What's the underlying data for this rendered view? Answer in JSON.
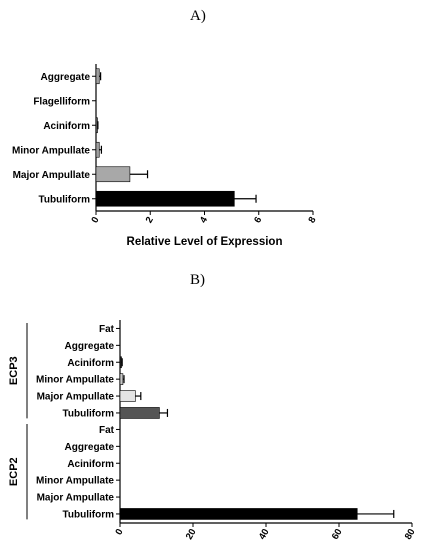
{
  "panels": {
    "a_label": "A)",
    "b_label": "B)"
  },
  "chart_data": [
    {
      "type": "bar",
      "orientation": "horizontal",
      "panel": "A)",
      "categories": [
        "Aggregate",
        "Flagelliform",
        "Aciniform",
        "Minor Ampullate",
        "Major Ampullate",
        "Tubuliform"
      ],
      "values": [
        0.12,
        0.0,
        0.05,
        0.12,
        1.25,
        5.1
      ],
      "errors": [
        0.05,
        0.0,
        0.02,
        0.08,
        0.65,
        0.8
      ],
      "colors": [
        "#a0a0a0",
        "#a0a0a0",
        "#707070",
        "#a0a0a0",
        "#a8a8a8",
        "#000000"
      ],
      "xlabel": "Relative Level of Expression",
      "xlim": [
        0,
        8
      ],
      "xticks": [
        0,
        2,
        4,
        6,
        8
      ],
      "grid": false
    },
    {
      "type": "bar",
      "orientation": "horizontal",
      "panel": "B)",
      "groups": [
        {
          "name": "ECP3",
          "categories": [
            "Fat",
            "Aggregate",
            "Aciniform",
            "Minor Ampullate",
            "Major Ampullate",
            "Tubuliform"
          ],
          "values": [
            0.0,
            0.0,
            0.4,
            0.8,
            4.2,
            10.8
          ],
          "errors": [
            0.0,
            0.0,
            0.2,
            0.3,
            1.5,
            2.2
          ],
          "colors": [
            "#888888",
            "#888888",
            "#222222",
            "#c8c8c8",
            "#e4e4e4",
            "#555555"
          ]
        },
        {
          "name": "ECP2",
          "categories": [
            "Fat",
            "Aggregate",
            "Aciniform",
            "Minor Ampullate",
            "Major Ampullate",
            "Tubuliform"
          ],
          "values": [
            0.0,
            0.0,
            0.0,
            0.0,
            0.0,
            65.0
          ],
          "errors": [
            0.0,
            0.0,
            0.0,
            0.0,
            0.0,
            10.0
          ],
          "colors": [
            "#888888",
            "#888888",
            "#888888",
            "#888888",
            "#888888",
            "#000000"
          ]
        }
      ],
      "xlim": [
        0,
        80
      ],
      "xticks": [
        0,
        20,
        40,
        60,
        80
      ],
      "xlabel": "",
      "grid": false
    }
  ]
}
